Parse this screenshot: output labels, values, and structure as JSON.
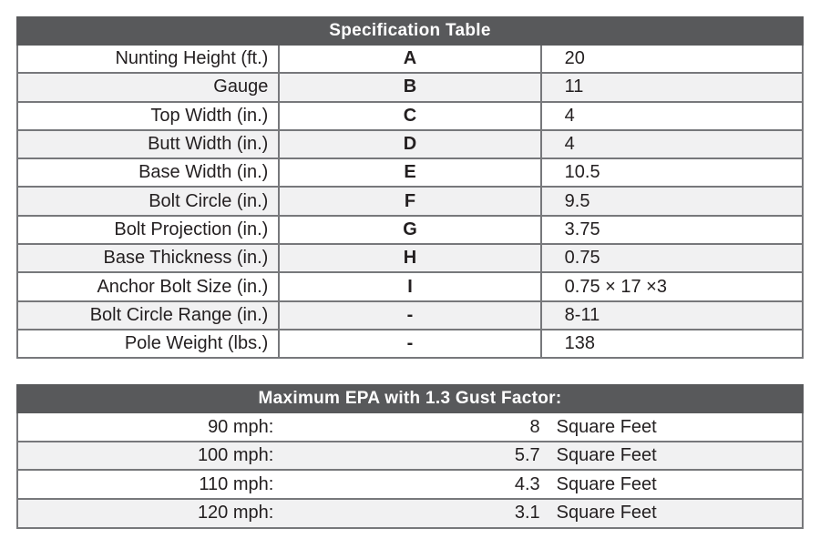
{
  "colors": {
    "header_bg": "#58595b",
    "header_text": "#ffffff",
    "row_stripe": "#f1f1f2",
    "border": "#77787b",
    "text": "#231f20"
  },
  "spec_table": {
    "title": "Specification Table",
    "rows": [
      {
        "label": "Nunting Height (ft.)",
        "letter": "A",
        "value": "20"
      },
      {
        "label": "Gauge",
        "letter": "B",
        "value": "11"
      },
      {
        "label": "Top Width (in.)",
        "letter": "C",
        "value": "4"
      },
      {
        "label": "Butt Width (in.)",
        "letter": "D",
        "value": "4"
      },
      {
        "label": "Base Width (in.)",
        "letter": "E",
        "value": "10.5"
      },
      {
        "label": "Bolt Circle (in.)",
        "letter": "F",
        "value": "9.5"
      },
      {
        "label": "Bolt Projection (in.)",
        "letter": "G",
        "value": "3.75"
      },
      {
        "label": "Base Thickness (in.)",
        "letter": "H",
        "value": "0.75"
      },
      {
        "label": "Anchor Bolt Size (in.)",
        "letter": "I",
        "value": "0.75 × 17 ×3"
      },
      {
        "label": "Bolt Circle Range (in.)",
        "letter": "-",
        "value": "8-11"
      },
      {
        "label": "Pole Weight (lbs.)",
        "letter": "-",
        "value": "138"
      }
    ]
  },
  "epa_table": {
    "title": "Maximum EPA with 1.3 Gust Factor:",
    "rows": [
      {
        "speed": "90 mph:",
        "value": "8",
        "unit": "Square Feet"
      },
      {
        "speed": "100 mph:",
        "value": "5.7",
        "unit": "Square Feet"
      },
      {
        "speed": "110 mph:",
        "value": "4.3",
        "unit": "Square Feet"
      },
      {
        "speed": "120 mph:",
        "value": "3.1",
        "unit": "Square Feet"
      }
    ]
  }
}
